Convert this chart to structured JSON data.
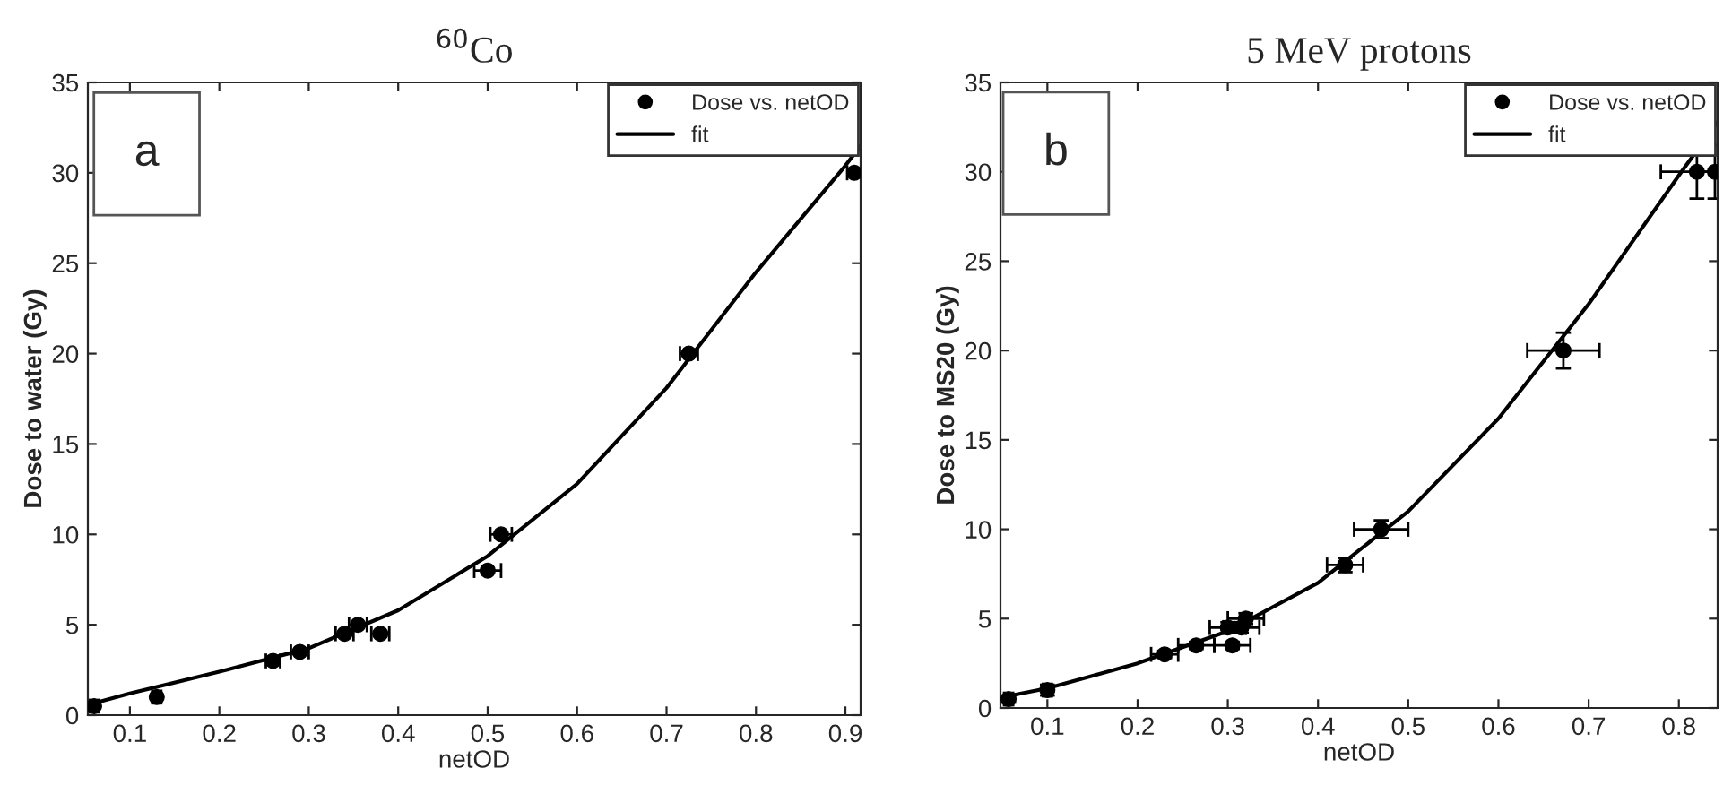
{
  "chart_data": [
    {
      "type": "scatter",
      "title": "$^{60}$Co",
      "xlabel": "netOD",
      "ylabel": "Dose to water (Gy)",
      "annotations": [
        "a"
      ],
      "xlim": [
        0.053,
        0.917
      ],
      "ylim": [
        0,
        35
      ],
      "xticks": [
        0.1,
        0.2,
        0.3,
        0.4,
        0.5,
        0.6,
        0.7,
        0.8,
        0.9
      ],
      "yticks": [
        0,
        5,
        10,
        15,
        20,
        25,
        30,
        35
      ],
      "legend": "top right",
      "grid": false,
      "series": [
        {
          "name": "Dose vs. netOD",
          "marker": "circle",
          "color": "#000000",
          "x": [
            0.06,
            0.13,
            0.26,
            0.29,
            0.34,
            0.355,
            0.38,
            0.5,
            0.515,
            0.725,
            0.91
          ],
          "values": [
            0.5,
            1,
            3,
            3.5,
            4.5,
            5,
            4.5,
            8,
            10,
            20,
            30
          ],
          "xerrors": [
            0.005,
            0.005,
            0.008,
            0.01,
            0.01,
            0.01,
            0.01,
            0.015,
            0.012,
            0.01,
            0.008
          ]
        },
        {
          "name": "fit",
          "type": "line",
          "marker": "none",
          "line_style": "solid",
          "color": "#000000",
          "x": [
            0.055,
            0.1,
            0.2,
            0.3,
            0.4,
            0.5,
            0.6,
            0.7,
            0.8,
            0.9,
            0.917
          ],
          "values": [
            0.6,
            1.2,
            2.4,
            3.7,
            5.8,
            8.8,
            12.8,
            18.1,
            24.5,
            30.4,
            31.5
          ]
        }
      ]
    },
    {
      "type": "scatter",
      "title": "5 MeV protons",
      "xlabel": "netOD",
      "ylabel": "Dose to MS20 (Gy)",
      "annotations": [
        "b"
      ],
      "xlim": [
        0.048,
        0.843
      ],
      "ylim": [
        0,
        35
      ],
      "xticks": [
        0.1,
        0.2,
        0.3,
        0.4,
        0.5,
        0.6,
        0.7,
        0.8
      ],
      "yticks": [
        0,
        5,
        10,
        15,
        20,
        25,
        30,
        35
      ],
      "legend": "top right",
      "grid": false,
      "series": [
        {
          "name": "Dose vs. netOD",
          "marker": "circle",
          "color": "#000000",
          "x": [
            0.057,
            0.1,
            0.23,
            0.265,
            0.305,
            0.3,
            0.315,
            0.32,
            0.43,
            0.47,
            0.672,
            0.82,
            0.84
          ],
          "values": [
            0.5,
            1,
            3,
            3.5,
            3.5,
            4.5,
            4.5,
            5,
            8,
            10,
            20,
            30,
            30
          ],
          "xerrors": [
            0.005,
            0.005,
            0.015,
            0.02,
            0.02,
            0.02,
            0.02,
            0.02,
            0.02,
            0.03,
            0.04,
            0.04,
            0.02
          ],
          "errors": [
            0.2,
            0.3,
            0.2,
            0.2,
            0.2,
            0.3,
            0.3,
            0.3,
            0.4,
            0.5,
            1,
            1.5,
            1.5
          ]
        },
        {
          "name": "fit",
          "type": "line",
          "marker": "none",
          "line_style": "solid",
          "color": "#000000",
          "x": [
            0.05,
            0.1,
            0.2,
            0.3,
            0.4,
            0.5,
            0.6,
            0.7,
            0.8,
            0.843
          ],
          "values": [
            0.6,
            1.1,
            2.5,
            4.3,
            7.0,
            11.0,
            16.2,
            22.6,
            29.8,
            32.8
          ]
        }
      ]
    }
  ]
}
